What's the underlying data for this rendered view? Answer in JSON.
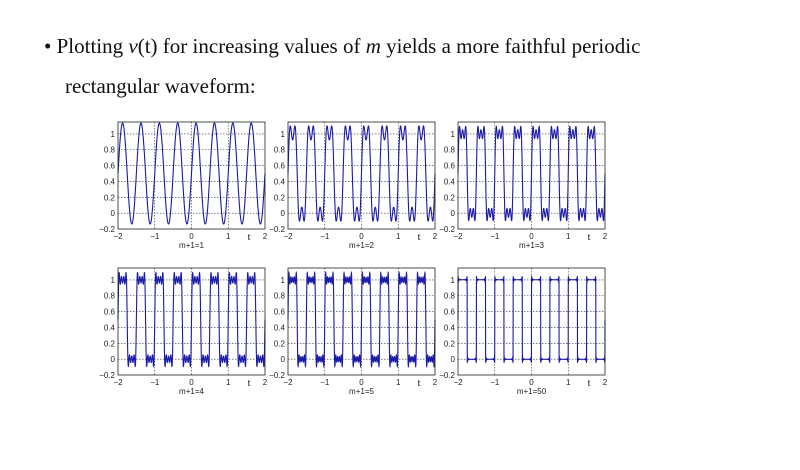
{
  "text": {
    "bullet": "•",
    "l1_a": "Plotting ",
    "l1_v": "v",
    "l1_t": "(t)",
    "l1_b": " for increasing values of ",
    "l1_m": "m",
    "l1_c": " yields a more faithful periodic",
    "line2": "rectangular waveform:"
  },
  "chart_data": [
    {
      "type": "line",
      "caption": "m+1=1",
      "terms": 1,
      "xlabel": "t",
      "xlim": [
        -2,
        2
      ],
      "ylim": [
        -0.2,
        1.15
      ],
      "xticks": [
        "−2",
        "−1",
        "0",
        "1",
        "2"
      ],
      "yticks": [
        "−0.2",
        "0",
        "0.2",
        "0.4",
        "0.6",
        "0.8",
        "1"
      ],
      "period": 0.5,
      "grid": true,
      "color": "#1a1aa8"
    },
    {
      "type": "line",
      "caption": "m+1=2",
      "terms": 2,
      "xlabel": "t",
      "xlim": [
        -2,
        2
      ],
      "ylim": [
        -0.2,
        1.15
      ],
      "xticks": [
        "−2",
        "−1",
        "0",
        "1",
        "2"
      ],
      "yticks": [
        "−0.2",
        "0",
        "0.2",
        "0.4",
        "0.6",
        "0.8",
        "1"
      ],
      "period": 0.5,
      "grid": true,
      "color": "#1a1aa8"
    },
    {
      "type": "line",
      "caption": "m+1=3",
      "terms": 3,
      "xlabel": "t",
      "xlim": [
        -2,
        2
      ],
      "ylim": [
        -0.2,
        1.15
      ],
      "xticks": [
        "−2",
        "−1",
        "0",
        "1",
        "2"
      ],
      "yticks": [
        "−0.2",
        "0",
        "0.2",
        "0.4",
        "0.6",
        "0.8",
        "1"
      ],
      "period": 0.5,
      "grid": true,
      "color": "#1a1aa8"
    },
    {
      "type": "line",
      "caption": "m+1=4",
      "terms": 4,
      "xlabel": "t",
      "xlim": [
        -2,
        2
      ],
      "ylim": [
        -0.2,
        1.15
      ],
      "xticks": [
        "−2",
        "−1",
        "0",
        "1",
        "2"
      ],
      "yticks": [
        "−0.2",
        "0",
        "0.2",
        "0.4",
        "0.6",
        "0.8",
        "1"
      ],
      "period": 0.5,
      "grid": true,
      "color": "#1a1aa8"
    },
    {
      "type": "line",
      "caption": "m+1=5",
      "terms": 5,
      "xlabel": "t",
      "xlim": [
        -2,
        2
      ],
      "ylim": [
        -0.2,
        1.15
      ],
      "xticks": [
        "−2",
        "−1",
        "0",
        "1",
        "2"
      ],
      "yticks": [
        "−0.2",
        "0",
        "0.2",
        "0.4",
        "0.6",
        "0.8",
        "1"
      ],
      "period": 0.5,
      "grid": true,
      "color": "#1a1aa8"
    },
    {
      "type": "line",
      "caption": "m+1=50",
      "terms": 50,
      "xlabel": "t",
      "xlim": [
        -2,
        2
      ],
      "ylim": [
        -0.2,
        1.15
      ],
      "xticks": [
        "−2",
        "−1",
        "0",
        "1",
        "2"
      ],
      "yticks": [
        "−0.2",
        "0",
        "0.2",
        "0.4",
        "0.6",
        "0.8",
        "1"
      ],
      "period": 0.5,
      "grid": true,
      "color": "#1a1aa8"
    }
  ]
}
